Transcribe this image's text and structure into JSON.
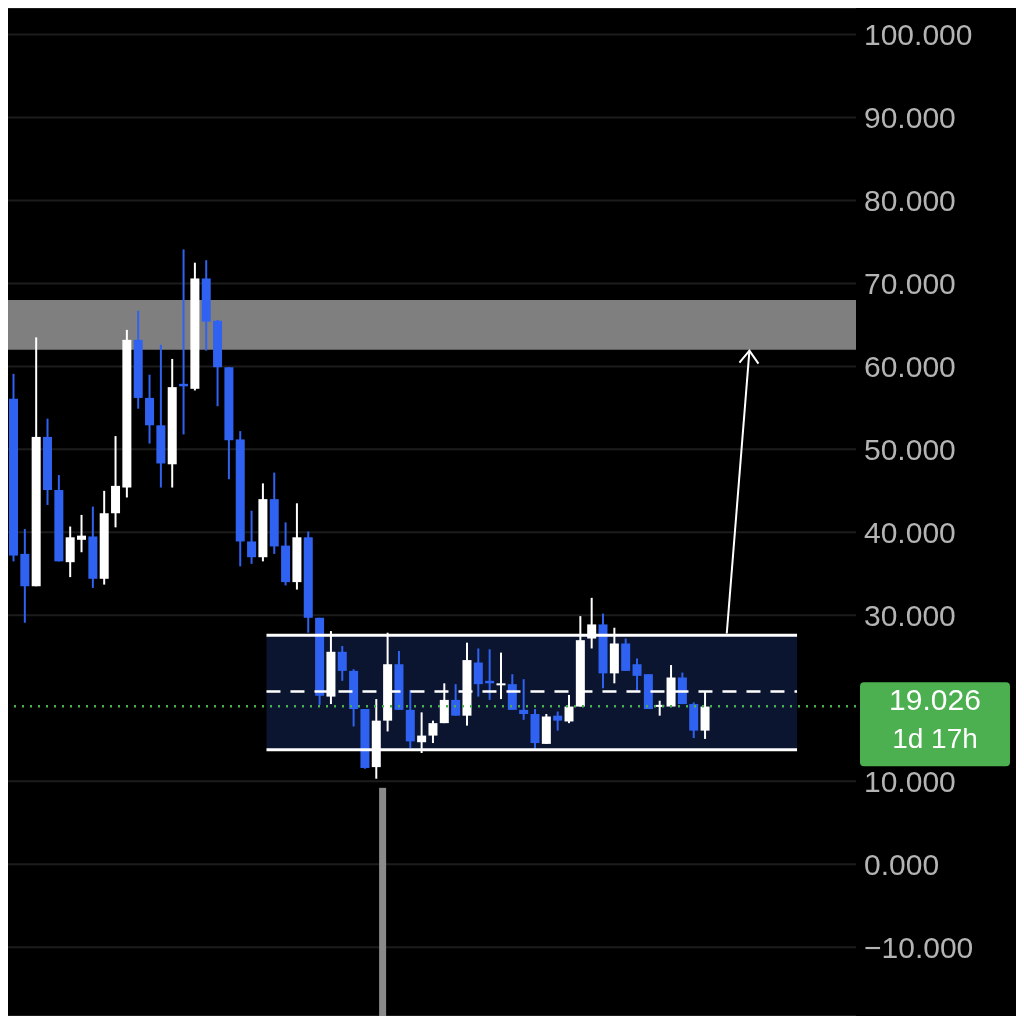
{
  "chart_data": {
    "type": "candlestick",
    "categories": [
      null,
      null,
      null,
      null,
      null,
      null,
      null,
      null,
      null,
      null,
      null,
      null,
      null,
      null,
      null,
      null,
      null,
      null,
      null,
      null,
      null,
      null,
      null,
      null,
      null,
      null,
      null,
      null,
      null,
      null,
      null,
      null,
      null,
      null,
      null,
      null,
      null,
      null,
      null,
      null,
      null,
      null,
      null,
      null,
      null,
      null,
      null,
      null,
      null,
      null,
      null,
      null,
      null,
      null,
      null,
      null,
      null,
      null,
      null,
      null,
      null,
      null
    ],
    "ohlc": [
      [
        56.1,
        59.1,
        36.5,
        37.2
      ],
      [
        37.4,
        40.4,
        29.1,
        33.5
      ],
      [
        33.5,
        63.5,
        33.5,
        51.5
      ],
      [
        51.5,
        53.7,
        43.3,
        45.1
      ],
      [
        45.1,
        46.9,
        36.5,
        36.5
      ],
      [
        36.4,
        40.7,
        34.6,
        39.4
      ],
      [
        39.1,
        42.1,
        37.6,
        39.6
      ],
      [
        39.5,
        43.1,
        33.3,
        34.4
      ],
      [
        34.4,
        45.0,
        33.7,
        42.3
      ],
      [
        42.3,
        51.6,
        40.6,
        45.6
      ],
      [
        45.4,
        64.4,
        44.2,
        63.2
      ],
      [
        63.2,
        66.7,
        54.9,
        56.2
      ],
      [
        56.2,
        59.0,
        50.7,
        52.9
      ],
      [
        52.9,
        62.6,
        45.4,
        48.3
      ],
      [
        48.2,
        60.9,
        45.4,
        57.5
      ],
      [
        57.9,
        74.1,
        51.8,
        57.6
      ],
      [
        57.3,
        72.5,
        57.1,
        70.6
      ],
      [
        70.6,
        72.8,
        61.9,
        65.4
      ],
      [
        65.5,
        65.6,
        55.2,
        59.9
      ],
      [
        59.9,
        59.9,
        46.4,
        51.1
      ],
      [
        51.2,
        52.2,
        35.9,
        38.9
      ],
      [
        38.9,
        42.6,
        36.2,
        37.0
      ],
      [
        37.0,
        45.9,
        36.5,
        44.0
      ],
      [
        44.0,
        47.2,
        37.4,
        38.3
      ],
      [
        38.4,
        41.2,
        33.6,
        34.0
      ],
      [
        34.0,
        43.5,
        33.1,
        39.4
      ],
      [
        39.4,
        40.1,
        27.9,
        29.7
      ],
      [
        29.7,
        29.7,
        19.2,
        20.3
      ],
      [
        20.2,
        28.1,
        19.3,
        25.6
      ],
      [
        25.6,
        26.3,
        22.1,
        23.3
      ],
      [
        23.3,
        23.5,
        16.6,
        18.7
      ],
      [
        18.7,
        18.7,
        11.5,
        11.6
      ],
      [
        11.7,
        19.9,
        10.3,
        17.3
      ],
      [
        17.3,
        27.9,
        16.0,
        24.1
      ],
      [
        24.1,
        25.7,
        18.6,
        18.6
      ],
      [
        18.6,
        21.0,
        14.0,
        14.8
      ],
      [
        14.7,
        18.3,
        13.4,
        15.5
      ],
      [
        15.5,
        17.3,
        14.6,
        17.0
      ],
      [
        17.0,
        21.8,
        17.0,
        19.8
      ],
      [
        19.8,
        21.7,
        17.9,
        17.9
      ],
      [
        17.9,
        26.7,
        16.7,
        24.6
      ],
      [
        24.3,
        26.0,
        20.2,
        21.7
      ],
      [
        22.1,
        25.9,
        19.8,
        21.8
      ],
      [
        21.6,
        25.5,
        19.9,
        21.8
      ],
      [
        21.7,
        22.9,
        18.6,
        18.6
      ],
      [
        18.6,
        22.3,
        17.4,
        18.1
      ],
      [
        18.1,
        18.7,
        13.9,
        14.6
      ],
      [
        14.5,
        18.1,
        14.5,
        17.8
      ],
      [
        17.9,
        18.4,
        16.1,
        17.3
      ],
      [
        17.2,
        20.4,
        17.0,
        19.0
      ],
      [
        19.0,
        29.9,
        19.0,
        27.0
      ],
      [
        27.2,
        32.1,
        26.0,
        28.9
      ],
      [
        28.9,
        30.2,
        21.2,
        23.0
      ],
      [
        23.0,
        28.5,
        21.8,
        26.6
      ],
      [
        26.6,
        27.2,
        23.3,
        23.3
      ],
      [
        24.1,
        24.8,
        20.9,
        22.7
      ],
      [
        22.9,
        22.9,
        18.7,
        18.7
      ],
      [
        19.0,
        19.7,
        17.9,
        19.2
      ],
      [
        19.0,
        24.0,
        19.0,
        22.5
      ],
      [
        22.5,
        23.1,
        19.3,
        19.3
      ],
      [
        19.3,
        19.5,
        15.2,
        16.1
      ],
      [
        16.1,
        20.8,
        15.1,
        19.0
      ]
    ],
    "colors": [
      "#2f62f0",
      "#2f62f0",
      "#ffffff",
      "#2f62f0",
      "#2f62f0",
      "#ffffff",
      "#ffffff",
      "#2f62f0",
      "#ffffff",
      "#ffffff",
      "#ffffff",
      "#2f62f0",
      "#2f62f0",
      "#2f62f0",
      "#ffffff",
      "#2f62f0",
      "#ffffff",
      "#2f62f0",
      "#2f62f0",
      "#2f62f0",
      "#2f62f0",
      "#2f62f0",
      "#ffffff",
      "#2f62f0",
      "#2f62f0",
      "#ffffff",
      "#2f62f0",
      "#2f62f0",
      "#ffffff",
      "#2f62f0",
      "#2f62f0",
      "#2f62f0",
      "#ffffff",
      "#ffffff",
      "#2f62f0",
      "#2f62f0",
      "#ffffff",
      "#ffffff",
      "#ffffff",
      "#2f62f0",
      "#ffffff",
      "#2f62f0",
      "#2f62f0",
      "#ffffff",
      "#2f62f0",
      "#2f62f0",
      "#2f62f0",
      "#ffffff",
      "#2f62f0",
      "#ffffff",
      "#ffffff",
      "#ffffff",
      "#2f62f0",
      "#ffffff",
      "#2f62f0",
      "#2f62f0",
      "#2f62f0",
      "#ffffff",
      "#ffffff",
      "#2f62f0",
      "#2f62f0",
      "#ffffff"
    ],
    "ylim": [
      -18.3,
      103.2
    ],
    "yticks": [
      {
        "value": -10,
        "label": "−10.000"
      },
      {
        "value": 0,
        "label": "0.000"
      },
      {
        "value": 10,
        "label": "10.000"
      },
      {
        "value": 30,
        "label": "30.000"
      },
      {
        "value": 40,
        "label": "40.000"
      },
      {
        "value": 50,
        "label": "50.000"
      },
      {
        "value": 60,
        "label": "60.000"
      },
      {
        "value": 70,
        "label": "70.000"
      },
      {
        "value": 80,
        "label": "80.000"
      },
      {
        "value": 90,
        "label": "90.000"
      },
      {
        "value": 100,
        "label": "100.000"
      }
    ],
    "tick_labels": "y",
    "grid": "y",
    "bands": [
      {
        "axis": "y",
        "from": 62,
        "to": 68,
        "color": "#7f7f7f"
      },
      {
        "axis": "y",
        "from": 13.8,
        "to": 27.6,
        "color": "#0b1530"
      }
    ],
    "ref_lines": [
      {
        "axis": "y",
        "value": 13.8,
        "color": "#ffffff",
        "line_style": "solid"
      },
      {
        "axis": "y",
        "value": 27.6,
        "color": "#ffffff",
        "line_style": "solid"
      },
      {
        "axis": "y",
        "value": 20.8,
        "color": "#ffffff",
        "line_style": "dashed"
      },
      {
        "axis": "y",
        "value": 19.026,
        "label": "19.026",
        "color": "#4caf50",
        "line_style": "dotted"
      }
    ],
    "annotations": [
      "1d 17h"
    ]
  }
}
